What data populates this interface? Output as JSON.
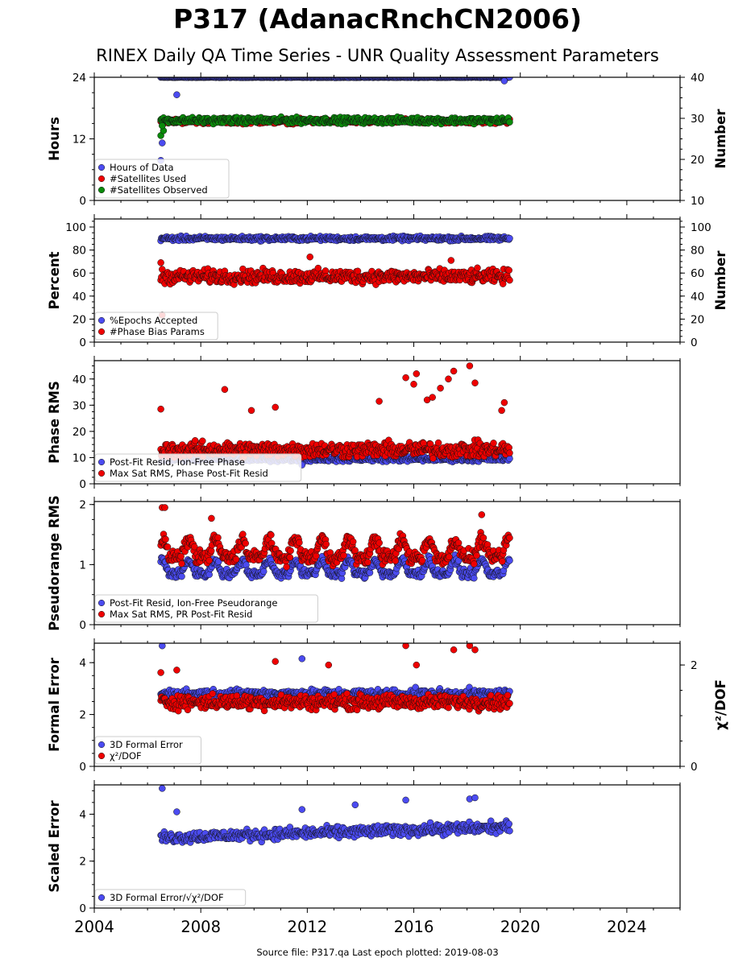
{
  "title": "P317 (AdanacRnchCN2006)",
  "subtitle": "RINEX Daily QA Time Series - UNR Quality Assessment Parameters",
  "footer": "Source file: P317.qa Last epoch plotted: 2019-08-03",
  "colors": {
    "blue": "#4b4bf0",
    "red": "#ee0000",
    "green": "#0a8a0a",
    "navy": "#0a0a60"
  },
  "chart_data": [
    {
      "type": "scatter",
      "id": "hours",
      "ylabel": "Hours",
      "ylabel_right": "Number",
      "xlim": [
        2004,
        2026
      ],
      "ylim": [
        0,
        24
      ],
      "ylim_right": [
        10,
        40
      ],
      "yticks": [
        0,
        12,
        24
      ],
      "yticks_right": [
        10,
        20,
        30,
        40
      ],
      "grid": false,
      "legend_loc": "lower-left",
      "legend": [
        "Hours of Data",
        "#Satellites Used",
        "#Satellites Observed"
      ],
      "series": [
        {
          "name": "Hours of Data",
          "axis": "left",
          "color": "#4b4bf0",
          "start": 2006.5,
          "end": 2019.6,
          "base": 24,
          "noise": 0.05,
          "outliers": [
            [
              2006.55,
              11.2
            ],
            [
              2007.1,
              20.6
            ],
            [
              2019.4,
              23.3
            ],
            [
              2006.5,
              7.8
            ]
          ]
        },
        {
          "name": "#Satellites Used",
          "axis": "right",
          "color": "#ee0000",
          "start": 2006.5,
          "end": 2019.6,
          "base": 29.3,
          "noise": 0.5,
          "outliers": [
            [
              2008.85,
              30.1
            ],
            [
              2010.4,
              29.9
            ]
          ]
        },
        {
          "name": "#Satellites Observed",
          "axis": "right",
          "color": "#0a8a0a",
          "start": 2006.5,
          "end": 2019.6,
          "base": 29.5,
          "noise": 0.6,
          "outliers": [
            [
              2006.5,
              25.8
            ],
            [
              2006.6,
              27.0
            ],
            [
              2006.55,
              28.2
            ]
          ]
        }
      ]
    },
    {
      "type": "scatter",
      "id": "percent",
      "ylabel": "Percent",
      "ylabel_right": "Number",
      "xlim": [
        2004,
        2026
      ],
      "ylim": [
        0,
        107
      ],
      "ylim_right": [
        0,
        107
      ],
      "yticks": [
        0,
        20,
        40,
        60,
        80,
        100
      ],
      "yticks_right": [
        0,
        20,
        40,
        60,
        80,
        100
      ],
      "grid": false,
      "legend_loc": "lower-left",
      "legend": [
        "%Epochs Accepted",
        "#Phase Bias Params"
      ],
      "series": [
        {
          "name": "%Epochs Accepted",
          "axis": "left",
          "color": "#4b4bf0",
          "start": 2006.5,
          "end": 2019.6,
          "base": 90,
          "noise": 1.6,
          "outliers": []
        },
        {
          "name": "#Phase Bias Params",
          "axis": "right",
          "color": "#ee0000",
          "start": 2006.5,
          "end": 2019.6,
          "base": 57,
          "noise": 5,
          "outliers": [
            [
              2006.55,
              23.5
            ],
            [
              2006.5,
              69
            ],
            [
              2012.1,
              74
            ],
            [
              2017.4,
              71
            ]
          ]
        }
      ]
    },
    {
      "type": "scatter",
      "id": "phase",
      "ylabel": "Phase RMS",
      "xlim": [
        2004,
        2026
      ],
      "ylim": [
        0,
        47
      ],
      "yticks": [
        0,
        10,
        20,
        30,
        40
      ],
      "grid": false,
      "legend_loc": "lower-left",
      "legend": [
        "Post-Fit Resid, Ion-Free Phase",
        "Max Sat RMS, Phase Post-Fit Resid"
      ],
      "series": [
        {
          "name": "Post-Fit Resid, Ion-Free Phase",
          "axis": "left",
          "color": "#4b4bf0",
          "start": 2006.5,
          "end": 2019.6,
          "base": 9.5,
          "noise": 0.8,
          "outliers": [
            [
              2011.8,
              7.2
            ]
          ]
        },
        {
          "name": "Max Sat RMS, Phase Post-Fit Resid",
          "axis": "left",
          "color": "#ee0000",
          "start": 2006.5,
          "end": 2019.6,
          "base": 13,
          "noise": 2.5,
          "outliers": [
            [
              2006.5,
              28.5
            ],
            [
              2008.9,
              36
            ],
            [
              2010.8,
              29.2
            ],
            [
              2014.7,
              31.5
            ],
            [
              2015.7,
              40.5
            ],
            [
              2016.0,
              38
            ],
            [
              2016.1,
              42
            ],
            [
              2016.5,
              32
            ],
            [
              2016.7,
              33
            ],
            [
              2017.0,
              36.5
            ],
            [
              2017.3,
              40
            ],
            [
              2017.5,
              43
            ],
            [
              2018.1,
              45
            ],
            [
              2018.3,
              38.5
            ],
            [
              2019.3,
              28
            ],
            [
              2019.4,
              31
            ],
            [
              2009.9,
              28
            ]
          ]
        }
      ]
    },
    {
      "type": "scatter",
      "id": "pseudorange",
      "ylabel": "Pseudorange RMS",
      "xlim": [
        2004,
        2026
      ],
      "ylim": [
        0,
        2.05
      ],
      "yticks": [
        0,
        1,
        2
      ],
      "grid": false,
      "legend_loc": "lower-left",
      "legend": [
        "Post-Fit Resid, Ion-Free Pseudorange",
        "Max Sat RMS, PR Post-Fit Resid"
      ],
      "series": [
        {
          "name": "Post-Fit Resid, Ion-Free Pseudorange",
          "axis": "left",
          "color": "#4b4bf0",
          "start": 2006.5,
          "end": 2019.6,
          "base": 0.85,
          "amp": 0.22,
          "noise": 0.06,
          "outliers": []
        },
        {
          "name": "Max Sat RMS, PR Post-Fit Resid",
          "axis": "left",
          "color": "#ee0000",
          "start": 2006.5,
          "end": 2019.6,
          "base": 1.12,
          "amp": 0.3,
          "noise": 0.1,
          "outliers": [
            [
              2006.55,
              1.95
            ],
            [
              2006.65,
              1.95
            ],
            [
              2018.55,
              1.83
            ],
            [
              2008.4,
              1.77
            ]
          ]
        }
      ]
    },
    {
      "type": "scatter",
      "id": "formal",
      "ylabel": "Formal Error",
      "ylabel_right": "χ²/DOF",
      "xlim": [
        2004,
        2026
      ],
      "ylim": [
        0,
        4.75
      ],
      "ylim_right": [
        0,
        2.43
      ],
      "yticks": [
        0,
        2,
        4
      ],
      "yticks_right": [
        0,
        2
      ],
      "grid": false,
      "legend_loc": "lower-left",
      "legend": [
        "3D Formal Error",
        "χ²/DOF"
      ],
      "series": [
        {
          "name": "3D Formal Error",
          "axis": "left",
          "color": "#4b4bf0",
          "start": 2006.5,
          "end": 2019.6,
          "base": 2.8,
          "noise": 0.15,
          "outliers": [
            [
              2006.55,
              4.65
            ],
            [
              2011.8,
              4.15
            ]
          ]
        },
        {
          "name": "χ²/DOF",
          "axis": "right",
          "color": "#ee0000",
          "start": 2006.5,
          "end": 2019.6,
          "base": 1.27,
          "noise": 0.12,
          "outliers": [
            [
              2010.8,
              2.07
            ],
            [
              2012.8,
              2.0
            ],
            [
              2015.7,
              2.38
            ],
            [
              2016.1,
              2.0
            ],
            [
              2017.5,
              2.3
            ],
            [
              2018.1,
              2.38
            ],
            [
              2018.3,
              2.3
            ],
            [
              2006.5,
              1.85
            ],
            [
              2007.1,
              1.9
            ]
          ]
        }
      ]
    },
    {
      "type": "scatter",
      "id": "scaled",
      "ylabel": "Scaled Error",
      "xlim": [
        2004,
        2026
      ],
      "ylim": [
        0,
        5.25
      ],
      "yticks": [
        0,
        2,
        4
      ],
      "xticks": [
        2004,
        2008,
        2012,
        2016,
        2020,
        2024
      ],
      "grid": false,
      "legend_loc": "lower-left",
      "legend": [
        "3D Formal Error/√χ²/DOF"
      ],
      "series": [
        {
          "name": "3D Formal Error/√χ²/DOF",
          "axis": "left",
          "color": "#4b4bf0",
          "start": 2006.5,
          "end": 2019.6,
          "base": 3.0,
          "trend": 0.035,
          "noise": 0.2,
          "outliers": [
            [
              2006.55,
              5.1
            ],
            [
              2007.1,
              4.1
            ],
            [
              2015.7,
              4.6
            ],
            [
              2018.1,
              4.65
            ],
            [
              2018.3,
              4.7
            ],
            [
              2011.8,
              4.2
            ],
            [
              2013.8,
              4.4
            ]
          ]
        }
      ]
    }
  ]
}
